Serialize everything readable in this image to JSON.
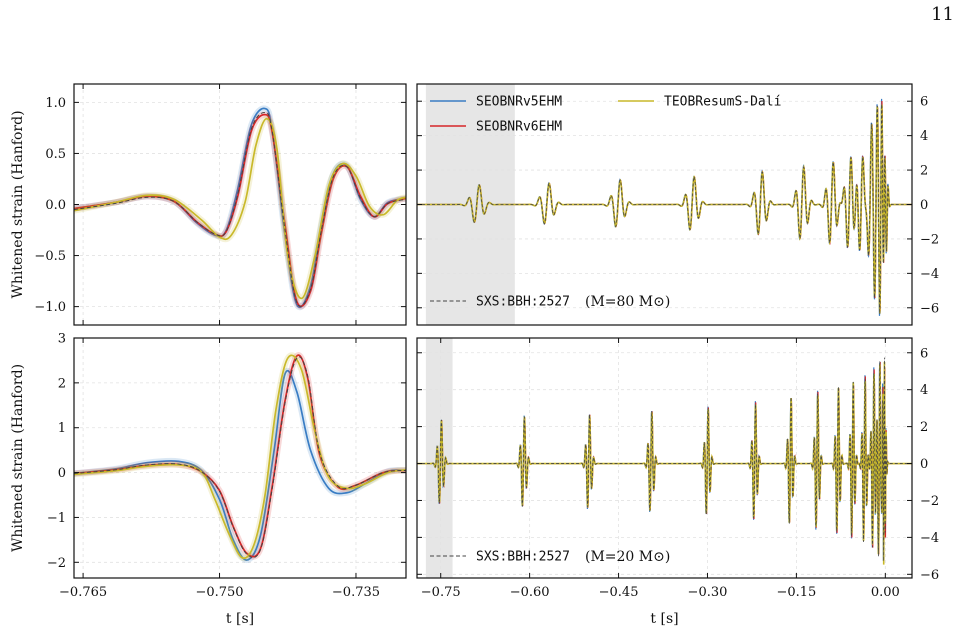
{
  "page": {
    "number": "11"
  },
  "colors": {
    "SEOBNRv5EHM": "#3a7dc4",
    "SEOBNRv6EHM": "#d62728",
    "TEOBResumS": "#c9b92a",
    "NR": "#444444",
    "shade": "#e6e6e6",
    "grid": "#e2e2e2"
  },
  "chart_data": [
    {
      "id": "top-left",
      "type": "line",
      "ylabel": "Whitened strain (Hanford)",
      "xlabel": "",
      "xlim": [
        -0.766,
        -0.7295
      ],
      "ylim": [
        -1.18,
        1.18
      ],
      "xticks": [
        -0.765,
        -0.75,
        -0.735
      ],
      "yticks": [
        -1.0,
        -0.5,
        0.0,
        0.5,
        1.0
      ],
      "ytick_labels": [
        "−1.0",
        "−0.5",
        "0.0",
        "0.5",
        "1.0"
      ],
      "grid": true,
      "series": [
        {
          "name": "SEOBNRv5EHM",
          "x": [
            -0.766,
            -0.7615,
            -0.758,
            -0.755,
            -0.7525,
            -0.7505,
            -0.7493,
            -0.748,
            -0.7465,
            -0.745,
            -0.7442,
            -0.7428,
            -0.7415,
            -0.74,
            -0.7388,
            -0.7375,
            -0.736,
            -0.7345,
            -0.733,
            -0.7315,
            -0.7295
          ],
          "y": [
            -0.04,
            0.02,
            0.08,
            0.03,
            -0.18,
            -0.3,
            -0.26,
            0.15,
            0.78,
            0.94,
            0.72,
            -0.3,
            -0.98,
            -0.8,
            -0.2,
            0.3,
            0.38,
            0.05,
            -0.12,
            0.02,
            0.06
          ]
        },
        {
          "name": "SEOBNRv6EHM",
          "x": [
            -0.766,
            -0.7615,
            -0.758,
            -0.755,
            -0.7525,
            -0.7505,
            -0.7493,
            -0.748,
            -0.7465,
            -0.745,
            -0.7442,
            -0.7428,
            -0.7415,
            -0.74,
            -0.7388,
            -0.7375,
            -0.736,
            -0.7345,
            -0.733,
            -0.7315,
            -0.7295
          ],
          "y": [
            -0.04,
            0.02,
            0.08,
            0.03,
            -0.17,
            -0.29,
            -0.27,
            0.08,
            0.72,
            0.88,
            0.7,
            -0.2,
            -0.95,
            -0.85,
            -0.28,
            0.25,
            0.37,
            0.08,
            -0.12,
            0.01,
            0.06
          ]
        },
        {
          "name": "TEOBResumS-Dalí",
          "x": [
            -0.766,
            -0.7615,
            -0.758,
            -0.755,
            -0.752,
            -0.75,
            -0.7487,
            -0.7472,
            -0.746,
            -0.7448,
            -0.7437,
            -0.7425,
            -0.741,
            -0.7395,
            -0.738,
            -0.7365,
            -0.735,
            -0.7335,
            -0.732,
            -0.7305,
            -0.7295
          ],
          "y": [
            -0.06,
            0.02,
            0.09,
            0.05,
            -0.15,
            -0.32,
            -0.3,
            0.02,
            0.58,
            0.84,
            0.55,
            -0.5,
            -0.92,
            -0.5,
            0.18,
            0.4,
            0.28,
            -0.02,
            -0.1,
            0.04,
            0.07
          ]
        },
        {
          "name": "SXS:BBH:2527",
          "x": [
            -0.766,
            -0.7615,
            -0.758,
            -0.755,
            -0.7525,
            -0.7505,
            -0.7493,
            -0.748,
            -0.7465,
            -0.745,
            -0.7442,
            -0.7428,
            -0.7415,
            -0.74,
            -0.7388,
            -0.7375,
            -0.736,
            -0.7345,
            -0.733,
            -0.7315,
            -0.7295
          ],
          "y": [
            -0.05,
            0.01,
            0.07,
            0.03,
            -0.17,
            -0.29,
            -0.27,
            0.1,
            0.74,
            0.9,
            0.71,
            -0.25,
            -0.96,
            -0.83,
            -0.25,
            0.27,
            0.37,
            0.06,
            -0.12,
            0.01,
            0.05
          ]
        }
      ]
    },
    {
      "id": "top-right",
      "type": "line",
      "xlabel": "",
      "ylabel": "",
      "xlim": [
        -0.79,
        0.045
      ],
      "ylim": [
        -7.0,
        7.0
      ],
      "yticks": [
        -6,
        -4,
        -2,
        0,
        2,
        4,
        6
      ],
      "ytick_labels": [
        "−6",
        "−4",
        "−2",
        "0",
        "2",
        "4",
        "6"
      ],
      "shaded_region": [
        -0.775,
        -0.625
      ],
      "legend": {
        "placement": "top-left",
        "entries": [
          "SEOBNRv5EHM",
          "SEOBNRv6EHM",
          "TEOBResumS-Dalí"
        ]
      },
      "nr_label": {
        "name": "SXS:BBH:2527",
        "mass": "(M=80 M⊙)",
        "placement": "bottom-left"
      },
      "grid": true
    },
    {
      "id": "bottom-left",
      "type": "line",
      "ylabel": "Whitened strain (Hanford)",
      "xlabel": "t [s]",
      "xlim": [
        -0.766,
        -0.7295
      ],
      "ylim": [
        -2.35,
        3.0
      ],
      "xticks": [
        -0.765,
        -0.75,
        -0.735
      ],
      "xtick_labels": [
        "−0.765",
        "−0.750",
        "−0.735"
      ],
      "yticks": [
        -2,
        -1,
        0,
        1,
        2,
        3
      ],
      "ytick_labels": [
        "−2",
        "−1",
        "0",
        "1",
        "2",
        "3"
      ],
      "grid": true,
      "series": [
        {
          "name": "SEOBNRv5EHM",
          "x": [
            -0.766,
            -0.7615,
            -0.758,
            -0.7545,
            -0.752,
            -0.75,
            -0.7485,
            -0.747,
            -0.7455,
            -0.744,
            -0.7428,
            -0.7415,
            -0.74,
            -0.738,
            -0.736,
            -0.734,
            -0.7315,
            -0.7295
          ],
          "y": [
            -0.02,
            0.08,
            0.22,
            0.25,
            0.05,
            -0.6,
            -1.5,
            -1.95,
            -1.4,
            0.5,
            2.2,
            1.8,
            0.5,
            -0.35,
            -0.45,
            -0.25,
            0.03,
            0.05
          ]
        },
        {
          "name": "SEOBNRv6EHM",
          "x": [
            -0.766,
            -0.7615,
            -0.758,
            -0.7545,
            -0.752,
            -0.75,
            -0.7485,
            -0.747,
            -0.7455,
            -0.7442,
            -0.7428,
            -0.7415,
            -0.7403,
            -0.739,
            -0.737,
            -0.735,
            -0.732,
            -0.7295
          ],
          "y": [
            -0.02,
            0.06,
            0.16,
            0.18,
            0.02,
            -0.4,
            -1.2,
            -1.8,
            -1.7,
            -0.3,
            1.6,
            2.6,
            2.1,
            0.4,
            -0.32,
            -0.28,
            0.0,
            0.05
          ]
        },
        {
          "name": "TEOBResumS-Dalí",
          "x": [
            -0.766,
            -0.7615,
            -0.758,
            -0.7545,
            -0.752,
            -0.7505,
            -0.749,
            -0.7475,
            -0.7462,
            -0.745,
            -0.7438,
            -0.7425,
            -0.741,
            -0.7395,
            -0.738,
            -0.736,
            -0.734,
            -0.7315,
            -0.7295
          ],
          "y": [
            -0.04,
            0.04,
            0.14,
            0.17,
            0.02,
            -0.6,
            -1.35,
            -1.9,
            -1.6,
            -0.5,
            1.4,
            2.55,
            2.3,
            0.9,
            -0.1,
            -0.35,
            -0.25,
            0.0,
            0.06
          ]
        },
        {
          "name": "SXS:BBH:2527",
          "x": [
            -0.766,
            -0.7615,
            -0.758,
            -0.7545,
            -0.752,
            -0.75,
            -0.7485,
            -0.747,
            -0.7455,
            -0.7442,
            -0.7428,
            -0.7415,
            -0.7403,
            -0.739,
            -0.737,
            -0.735,
            -0.732,
            -0.7295
          ],
          "y": [
            -0.02,
            0.06,
            0.17,
            0.19,
            0.02,
            -0.42,
            -1.22,
            -1.82,
            -1.72,
            -0.35,
            1.55,
            2.55,
            2.15,
            0.45,
            -0.3,
            -0.28,
            0.0,
            0.05
          ]
        }
      ]
    },
    {
      "id": "bottom-right",
      "type": "line",
      "xlabel": "t [s]",
      "ylabel": "",
      "xlim": [
        -0.79,
        0.045
      ],
      "ylim": [
        -6.2,
        6.8
      ],
      "xticks": [
        -0.75,
        -0.6,
        -0.45,
        -0.3,
        -0.15,
        0.0
      ],
      "xtick_labels": [
        "−0.75",
        "−0.60",
        "−0.45",
        "−0.30",
        "−0.15",
        "0.00"
      ],
      "yticks": [
        -6,
        -4,
        -2,
        0,
        2,
        4,
        6
      ],
      "ytick_labels": [
        "−6",
        "−4",
        "−2",
        "0",
        "2",
        "4",
        "6"
      ],
      "shaded_region": [
        -0.775,
        -0.73
      ],
      "nr_label": {
        "name": "SXS:BBH:2527",
        "mass": "(M=20 M⊙)",
        "placement": "bottom-left"
      },
      "grid": true
    }
  ]
}
